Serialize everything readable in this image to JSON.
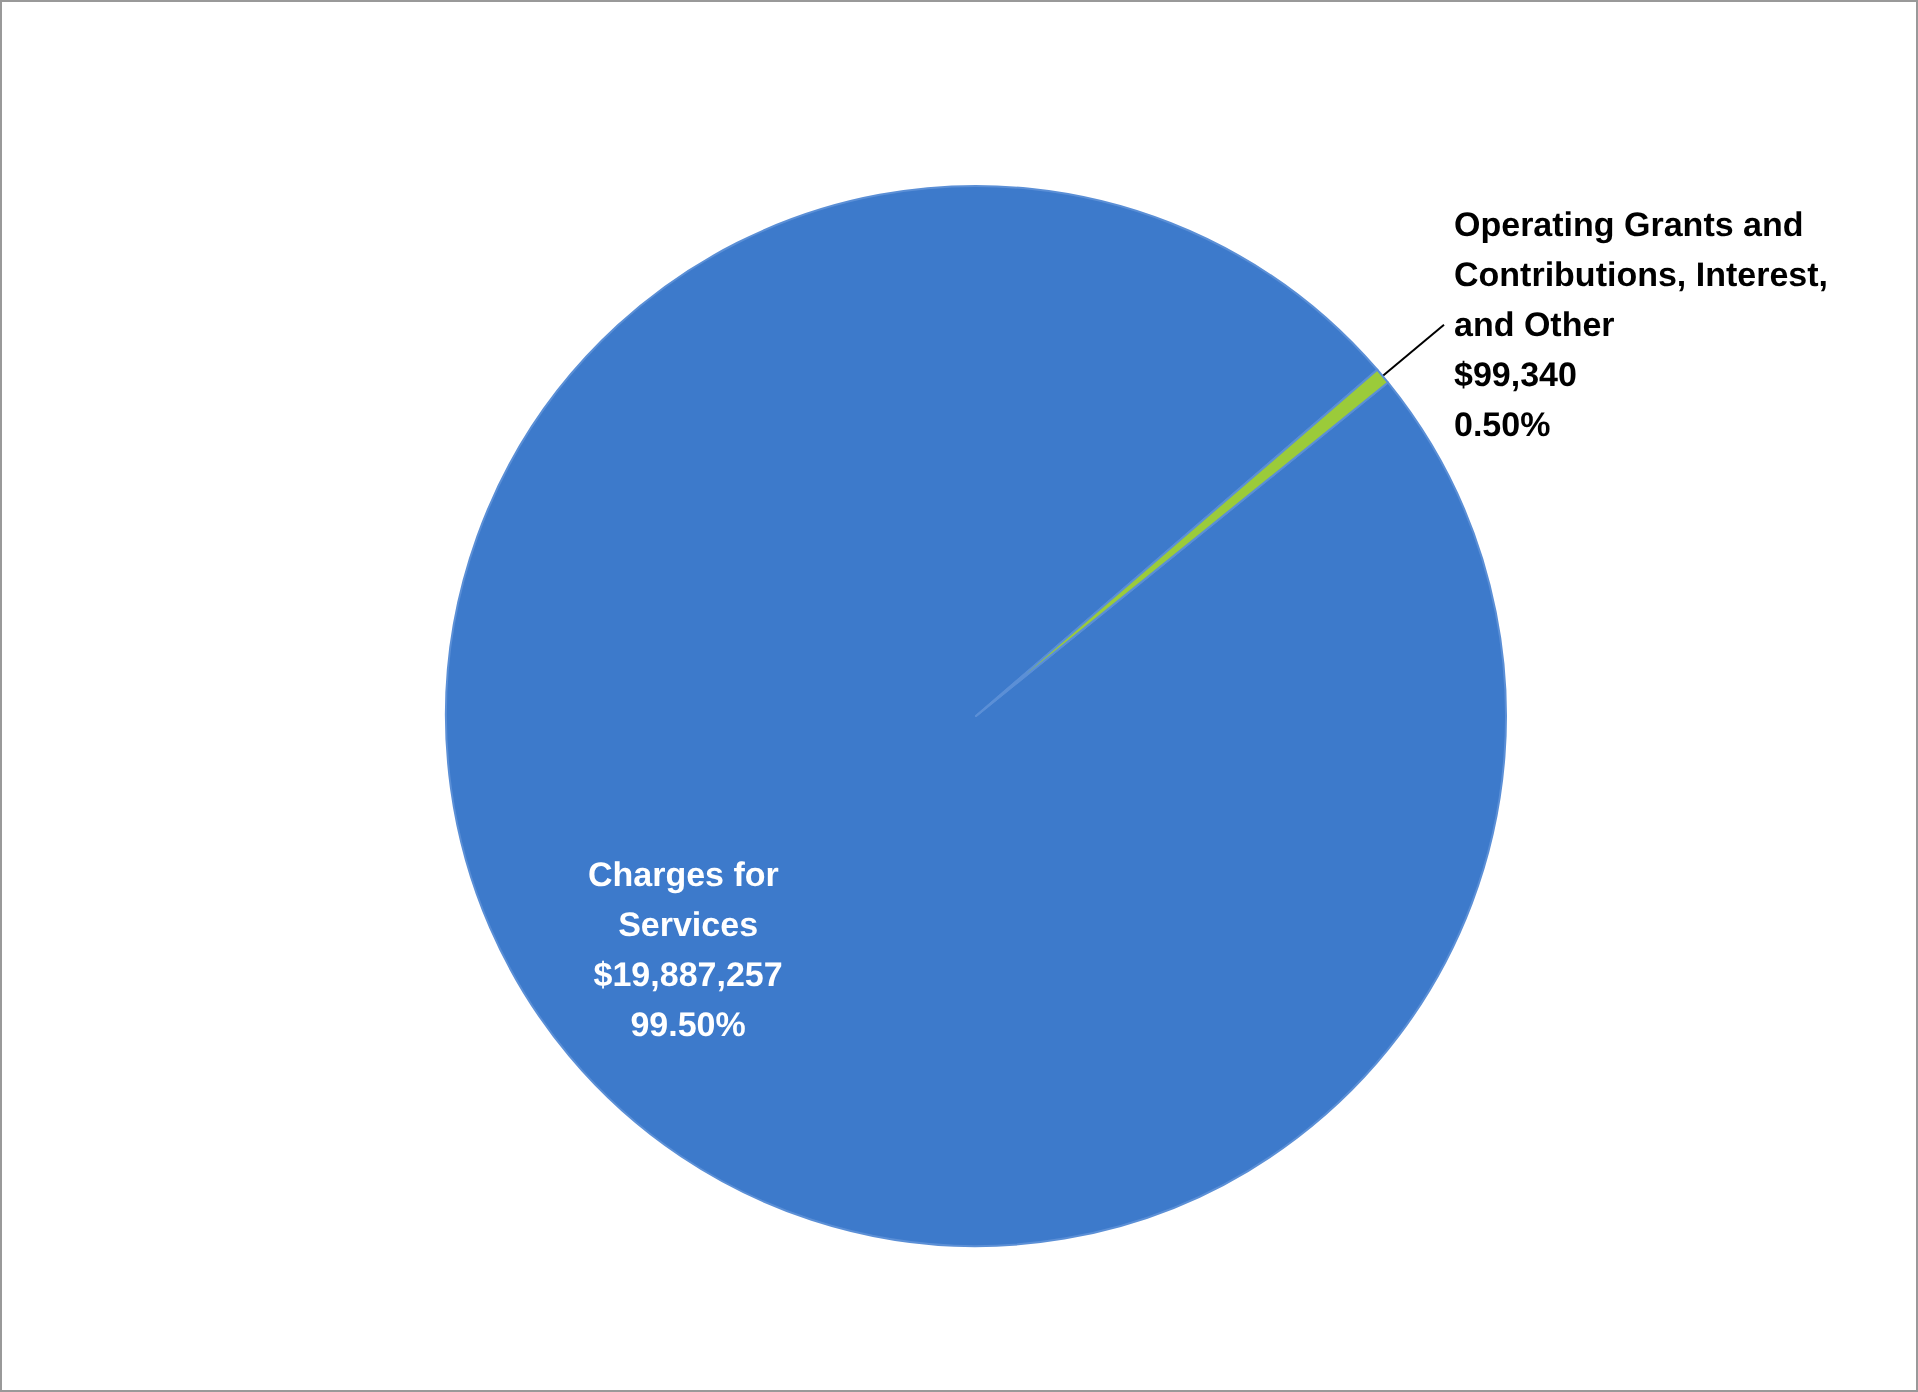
{
  "chart_data": {
    "type": "pie",
    "categories": [
      "Charges for Services",
      "Operating Grants and Contributions, Interest,  and Other"
    ],
    "values": [
      19887257,
      99340
    ],
    "colors": [
      "#3d7acb",
      "#9bcb3a"
    ],
    "value_labels": [
      "$19,887,257\n99.50%",
      "$99,340\n0.50%"
    ],
    "legend": false
  }
}
